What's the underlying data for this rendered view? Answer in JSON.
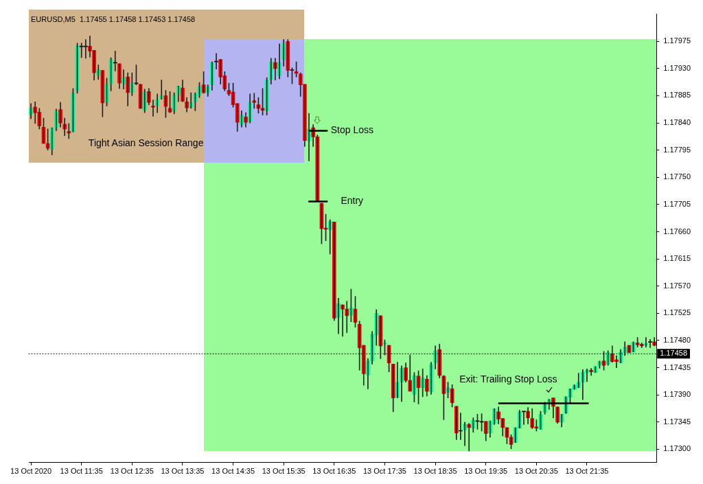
{
  "chart_data": {
    "type": "candlestick",
    "title": "EURUSD,M5  1.17455 1.17458 1.17453 1.17458",
    "categories": [
      "13 Oct 2020",
      null,
      null,
      null,
      null,
      null,
      null,
      null,
      null,
      null,
      null,
      null,
      "13 Oct 11:35",
      null,
      null,
      null,
      null,
      null,
      null,
      null,
      null,
      null,
      null,
      null,
      "13 Oct 12:35",
      null,
      null,
      null,
      null,
      null,
      null,
      null,
      null,
      null,
      null,
      null,
      "13 Oct 13:35",
      null,
      null,
      null,
      null,
      null,
      null,
      null,
      null,
      null,
      null,
      null,
      "13 Oct 14:35",
      null,
      null,
      null,
      null,
      null,
      null,
      null,
      null,
      null,
      null,
      null,
      "13 Oct 15:35",
      null,
      null,
      null,
      null,
      null,
      null,
      null,
      null,
      null,
      null,
      null,
      "13 Oct 16:35",
      null,
      null,
      null,
      null,
      null,
      null,
      null,
      null,
      null,
      null,
      null,
      "13 Oct 17:35",
      null,
      null,
      null,
      null,
      null,
      null,
      null,
      null,
      null,
      null,
      null,
      "13 Oct 18:35",
      null,
      null,
      null,
      null,
      null,
      null,
      null,
      null,
      null,
      null,
      null,
      "13 Oct 19:35",
      null,
      null,
      null,
      null,
      null,
      null,
      null,
      null,
      null,
      null,
      null,
      "13 Oct 20:35",
      null,
      null,
      null,
      null,
      null,
      null,
      null,
      null,
      null,
      null,
      null,
      "13 Oct 21:35",
      null,
      null,
      null,
      null,
      null,
      null,
      null,
      null,
      null,
      null,
      null,
      null,
      null,
      null,
      null,
      null
    ],
    "ohlc": [
      [
        1.17854,
        1.17872,
        1.17847,
        1.17865
      ],
      [
        1.17866,
        1.17875,
        1.17839,
        1.17857
      ],
      [
        1.17858,
        1.17864,
        1.1783,
        1.17835
      ],
      [
        1.17833,
        1.17848,
        1.17806,
        1.17806
      ],
      [
        1.17806,
        1.1783,
        1.17795,
        1.17798
      ],
      [
        1.17796,
        1.17832,
        1.17787,
        1.17832
      ],
      [
        1.17832,
        1.17863,
        1.17827,
        1.1786
      ],
      [
        1.17862,
        1.17874,
        1.17833,
        1.1784
      ],
      [
        1.17838,
        1.17848,
        1.17819,
        1.1783
      ],
      [
        1.17826,
        1.17839,
        1.17814,
        1.17823
      ],
      [
        1.17825,
        1.17897,
        1.17825,
        1.1789
      ],
      [
        1.17893,
        1.17972,
        1.17889,
        1.17968
      ],
      [
        1.17966,
        1.17972,
        1.17948,
        1.17966
      ],
      [
        1.17966,
        1.17978,
        1.17947,
        1.17966
      ],
      [
        1.17967,
        1.17984,
        1.17949,
        1.17959
      ],
      [
        1.1796,
        1.1796,
        1.17911,
        1.17923
      ],
      [
        1.17919,
        1.17936,
        1.17912,
        1.17928
      ],
      [
        1.17927,
        1.17927,
        1.1785,
        1.17873
      ],
      [
        1.17874,
        1.17914,
        1.17868,
        1.17904
      ],
      [
        1.17905,
        1.17948,
        1.17893,
        1.17945
      ],
      [
        1.17939,
        1.17959,
        1.17926,
        1.17939
      ],
      [
        1.17938,
        1.17938,
        1.17897,
        1.17906
      ],
      [
        1.17905,
        1.17928,
        1.17896,
        1.17915
      ],
      [
        1.17916,
        1.17923,
        1.17868,
        1.1789
      ],
      [
        1.1789,
        1.17923,
        1.17885,
        1.17906
      ],
      [
        1.17905,
        1.17936,
        1.17903,
        1.17905
      ],
      [
        1.17904,
        1.17904,
        1.17864,
        1.17864
      ],
      [
        1.17861,
        1.17896,
        1.17857,
        1.17892
      ],
      [
        1.17892,
        1.17897,
        1.1787,
        1.17874
      ],
      [
        1.17868,
        1.17878,
        1.17851,
        1.17866
      ],
      [
        1.17868,
        1.17888,
        1.17857,
        1.17879
      ],
      [
        1.1788,
        1.17911,
        1.17879,
        1.17885
      ],
      [
        1.17885,
        1.17894,
        1.17849,
        1.17867
      ],
      [
        1.17864,
        1.17892,
        1.17857,
        1.17858
      ],
      [
        1.1786,
        1.1789,
        1.17855,
        1.17886
      ],
      [
        1.17887,
        1.17901,
        1.17875,
        1.17901
      ],
      [
        1.17898,
        1.17911,
        1.17875,
        1.17876
      ],
      [
        1.17875,
        1.17882,
        1.17858,
        1.17865
      ],
      [
        1.17866,
        1.1789,
        1.17864,
        1.17874
      ],
      [
        1.17875,
        1.1789,
        1.1786,
        1.17888
      ],
      [
        1.17886,
        1.17907,
        1.17882,
        1.17901
      ],
      [
        1.17903,
        1.17925,
        1.17889,
        1.1789
      ],
      [
        1.17889,
        1.17903,
        1.17884,
        1.179
      ],
      [
        1.17903,
        1.17941,
        1.17894,
        1.1794
      ],
      [
        1.17941,
        1.17955,
        1.17929,
        1.17941
      ],
      [
        1.17945,
        1.17945,
        1.17904,
        1.17916
      ],
      [
        1.17918,
        1.17925,
        1.17893,
        1.17896
      ],
      [
        1.17894,
        1.17906,
        1.17885,
        1.17888
      ],
      [
        1.17891,
        1.17906,
        1.17866,
        1.1787
      ],
      [
        1.17872,
        1.17872,
        1.17826,
        1.17841
      ],
      [
        1.17837,
        1.1786,
        1.17833,
        1.17853
      ],
      [
        1.1785,
        1.17857,
        1.17833,
        1.17841
      ],
      [
        1.17842,
        1.17888,
        1.1784,
        1.17874
      ],
      [
        1.17877,
        1.17889,
        1.17864,
        1.17874
      ],
      [
        1.1787,
        1.17882,
        1.17856,
        1.17864
      ],
      [
        1.17864,
        1.17897,
        1.17853,
        1.17861
      ],
      [
        1.1786,
        1.17915,
        1.17853,
        1.17911
      ],
      [
        1.17912,
        1.17947,
        1.17904,
        1.17941
      ],
      [
        1.1794,
        1.17947,
        1.17911,
        1.1793
      ],
      [
        1.17918,
        1.17971,
        1.17913,
        1.1794
      ],
      [
        1.17945,
        1.17978,
        1.17934,
        1.17972
      ],
      [
        1.17975,
        1.17978,
        1.17916,
        1.17927
      ],
      [
        1.17927,
        1.17931,
        1.17905,
        1.17927
      ],
      [
        1.17925,
        1.17941,
        1.17916,
        1.17922
      ],
      [
        1.17921,
        1.17923,
        1.17884,
        1.17903
      ],
      [
        1.17904,
        1.17904,
        1.17801,
        1.17811
      ],
      [
        1.1781,
        1.17856,
        1.17777,
        1.1783
      ],
      [
        1.17832,
        1.17837,
        1.17801,
        1.17817
      ],
      [
        1.17817,
        1.1782,
        1.1771,
        1.1771
      ],
      [
        1.17707,
        1.17707,
        1.1764,
        1.17665
      ],
      [
        1.17666,
        1.17689,
        1.17645,
        1.17664
      ],
      [
        1.17663,
        1.1768,
        1.17623,
        1.17677
      ],
      [
        1.17676,
        1.17676,
        1.17513,
        1.17517
      ],
      [
        1.17518,
        1.1755,
        1.17491,
        1.17541
      ],
      [
        1.17539,
        1.17539,
        1.17487,
        1.17532
      ],
      [
        1.17532,
        1.17545,
        1.17493,
        1.17521
      ],
      [
        1.17522,
        1.17565,
        1.17511,
        1.17534
      ],
      [
        1.17532,
        1.17553,
        1.17502,
        1.1751
      ],
      [
        1.17507,
        1.17512,
        1.17431,
        1.17468
      ],
      [
        1.17472,
        1.17472,
        1.17406,
        1.17425
      ],
      [
        1.17423,
        1.1745,
        1.174,
        1.17446
      ],
      [
        1.17446,
        1.17495,
        1.17441,
        1.1749
      ],
      [
        1.17489,
        1.17531,
        1.17472,
        1.17525
      ],
      [
        1.17521,
        1.17521,
        1.1745,
        1.17471
      ],
      [
        1.17474,
        1.17481,
        1.17456,
        1.17476
      ],
      [
        1.17472,
        1.17472,
        1.17428,
        1.17443
      ],
      [
        1.17441,
        1.17441,
        1.17362,
        1.17385
      ],
      [
        1.17386,
        1.17444,
        1.17385,
        1.17411
      ],
      [
        1.17411,
        1.17438,
        1.17379,
        1.17434
      ],
      [
        1.17435,
        1.17443,
        1.17411,
        1.17414
      ],
      [
        1.17414,
        1.17456,
        1.17396,
        1.17396
      ],
      [
        1.17391,
        1.17427,
        1.17378,
        1.17422
      ],
      [
        1.17421,
        1.1743,
        1.17375,
        1.17402
      ],
      [
        1.17402,
        1.17433,
        1.17387,
        1.17418
      ],
      [
        1.17416,
        1.17422,
        1.17388,
        1.17396
      ],
      [
        1.17395,
        1.17444,
        1.17391,
        1.17441
      ],
      [
        1.17443,
        1.17471,
        1.17433,
        1.17463
      ],
      [
        1.17465,
        1.17474,
        1.17418,
        1.17422
      ],
      [
        1.17421,
        1.17422,
        1.17349,
        1.17392
      ],
      [
        1.17394,
        1.17411,
        1.17385,
        1.17402
      ],
      [
        1.174,
        1.17407,
        1.1737,
        1.17377
      ],
      [
        1.17371,
        1.17371,
        1.17316,
        1.17327
      ],
      [
        1.1733,
        1.1736,
        1.17316,
        1.1733
      ],
      [
        1.17332,
        1.17345,
        1.17306,
        1.17342
      ],
      [
        1.17341,
        1.17343,
        1.17297,
        1.17336
      ],
      [
        1.17335,
        1.17352,
        1.17328,
        1.17348
      ],
      [
        1.17346,
        1.17358,
        1.17333,
        1.17346
      ],
      [
        1.17345,
        1.17359,
        1.1733,
        1.17345
      ],
      [
        1.17346,
        1.17346,
        1.17314,
        1.17326
      ],
      [
        1.17327,
        1.17347,
        1.1732,
        1.17347
      ],
      [
        1.17343,
        1.17367,
        1.17341,
        1.17367
      ],
      [
        1.17362,
        1.1737,
        1.17342,
        1.1735
      ],
      [
        1.17351,
        1.17351,
        1.17322,
        1.17336
      ],
      [
        1.17336,
        1.17336,
        1.17309,
        1.1732
      ],
      [
        1.1732,
        1.17324,
        1.17301,
        1.17308
      ],
      [
        1.17311,
        1.17336,
        1.17311,
        1.17336
      ],
      [
        1.17335,
        1.17365,
        1.17335,
        1.17362
      ],
      [
        1.17362,
        1.17363,
        1.17341,
        1.17362
      ],
      [
        1.17363,
        1.17369,
        1.17342,
        1.17352
      ],
      [
        1.17351,
        1.17367,
        1.17334,
        1.17336
      ],
      [
        1.17337,
        1.17349,
        1.1733,
        1.17335
      ],
      [
        1.17333,
        1.17363,
        1.17333,
        1.17358
      ],
      [
        1.17361,
        1.17378,
        1.17358,
        1.17376
      ],
      [
        1.17376,
        1.17383,
        1.17366,
        1.17382
      ],
      [
        1.17385,
        1.17385,
        1.17352,
        1.17371
      ],
      [
        1.1737,
        1.1737,
        1.17343,
        1.17345
      ],
      [
        1.17345,
        1.17358,
        1.17337,
        1.17358
      ],
      [
        1.1736,
        1.17387,
        1.17359,
        1.17387
      ],
      [
        1.17386,
        1.174,
        1.17376,
        1.174
      ],
      [
        1.17399,
        1.17407,
        1.17399,
        1.17406
      ],
      [
        1.17402,
        1.17426,
        1.17402,
        1.17411
      ],
      [
        1.17411,
        1.17432,
        1.17382,
        1.17428
      ],
      [
        1.17427,
        1.17433,
        1.17412,
        1.17431
      ],
      [
        1.17431,
        1.17434,
        1.17422,
        1.17428
      ],
      [
        1.17427,
        1.17437,
        1.17427,
        1.17437
      ],
      [
        1.17439,
        1.17446,
        1.17434,
        1.17445
      ],
      [
        1.17446,
        1.17462,
        1.17431,
        1.17439
      ],
      [
        1.17441,
        1.17463,
        1.17439,
        1.1746
      ],
      [
        1.17458,
        1.17471,
        1.17444,
        1.17445
      ],
      [
        1.17448,
        1.17455,
        1.17435,
        1.17445
      ],
      [
        1.17443,
        1.17465,
        1.17443,
        1.17461
      ],
      [
        1.1746,
        1.17478,
        1.17455,
        1.17469
      ],
      [
        1.17472,
        1.17472,
        1.1746,
        1.1746
      ],
      [
        1.17461,
        1.17478,
        1.17461,
        1.17477
      ],
      [
        1.17476,
        1.17485,
        1.17469,
        1.17473
      ],
      [
        1.17474,
        1.17476,
        1.17468,
        1.17471
      ],
      [
        1.17472,
        1.17485,
        1.17469,
        1.17475
      ],
      [
        1.17477,
        1.17482,
        1.17468,
        1.17477
      ],
      [
        1.17478,
        1.17485,
        1.17471,
        1.17472
      ]
    ],
    "colors": [
      "#00fa9a",
      "#ff0000",
      "#ff0000",
      "#ff0000",
      "#ff0000",
      "#00fa9a",
      "#00fa9a",
      "#ff0000",
      "#ff0000",
      "#ff0000",
      "#00fa9a",
      "#00fa9a",
      "#000000",
      "#000000",
      "#ff0000",
      "#ff0000",
      "#00fa9a",
      "#ff0000",
      "#00fa9a",
      "#00fa9a",
      "#000000",
      "#ff0000",
      "#00fa9a",
      "#ff0000",
      "#00fa9a",
      "#000000",
      "#ff0000",
      "#00fa9a",
      "#ff0000",
      "#ff0000",
      "#00fa9a",
      "#00fa9a",
      "#ff0000",
      "#ff0000",
      "#00fa9a",
      "#00fa9a",
      "#ff0000",
      "#ff0000",
      "#00fa9a",
      "#00fa9a",
      "#00fa9a",
      "#ff0000",
      "#00fa9a",
      "#00fa9a",
      "#000000",
      "#ff0000",
      "#ff0000",
      "#ff0000",
      "#ff0000",
      "#ff0000",
      "#00fa9a",
      "#ff0000",
      "#00fa9a",
      "#ff0000",
      "#ff0000",
      "#ff0000",
      "#00fa9a",
      "#00fa9a",
      "#ff0000",
      "#00fa9a",
      "#00fa9a",
      "#ff0000",
      "#000000",
      "#ff0000",
      "#ff0000",
      "#ff0000",
      "#00fa9a",
      "#ff0000",
      "#ff0000",
      "#ff0000",
      "#ff0000",
      "#00fa9a",
      "#ff0000",
      "#00fa9a",
      "#ff0000",
      "#ff0000",
      "#00fa9a",
      "#ff0000",
      "#ff0000",
      "#ff0000",
      "#00fa9a",
      "#00fa9a",
      "#00fa9a",
      "#ff0000",
      "#00fa9a",
      "#ff0000",
      "#ff0000",
      "#00fa9a",
      "#00fa9a",
      "#ff0000",
      "#ff0000",
      "#00fa9a",
      "#ff0000",
      "#00fa9a",
      "#ff0000",
      "#00fa9a",
      "#00fa9a",
      "#ff0000",
      "#ff0000",
      "#00fa9a",
      "#ff0000",
      "#ff0000",
      "#000000",
      "#00fa9a",
      "#ff0000",
      "#00fa9a",
      "#000000",
      "#000000",
      "#ff0000",
      "#00fa9a",
      "#00fa9a",
      "#ff0000",
      "#ff0000",
      "#ff0000",
      "#ff0000",
      "#00fa9a",
      "#00fa9a",
      "#000000",
      "#ff0000",
      "#ff0000",
      "#ff0000",
      "#00fa9a",
      "#00fa9a",
      "#00fa9a",
      "#ff0000",
      "#ff0000",
      "#00fa9a",
      "#00fa9a",
      "#00fa9a",
      "#00fa9a",
      "#00fa9a",
      "#00fa9a",
      "#00fa9a",
      "#ff0000",
      "#00fa9a",
      "#00fa9a",
      "#ff0000",
      "#00fa9a",
      "#ff0000",
      "#ff0000",
      "#00fa9a",
      "#00fa9a",
      "#ff0000",
      "#00fa9a",
      "#ff0000",
      "#ff0000",
      "#00fa9a",
      "#000000",
      "#ff0000"
    ],
    "ylim": [
      1.17278,
      1.1802
    ],
    "yticks": [
      {
        "value": 1.173,
        "label": "1.17300"
      },
      1.17345,
      {
        "value": 1.1739,
        "label": "1.17390"
      },
      1.17435,
      {
        "value": 1.1748,
        "label": "1.17480"
      },
      1.17525,
      {
        "value": 1.1757,
        "label": "1.17570"
      },
      1.17615,
      {
        "value": 1.1766,
        "label": "1.17660"
      },
      1.17705,
      {
        "value": 1.1775,
        "label": "1.17750"
      },
      1.17795,
      {
        "value": 1.1784,
        "label": "1.17840"
      },
      1.17885,
      {
        "value": 1.1793,
        "label": "1.17930"
      },
      1.17975
    ],
    "ref_lines": [
      {
        "axis": "y",
        "value": 1.17458,
        "label": "1.17458",
        "line_style": "dotted"
      },
      {
        "axis": "y",
        "value": 1.17827,
        "label": "Stop Loss",
        "line_style": "solid"
      },
      {
        "axis": "y",
        "value": 1.1771,
        "label": "Entry",
        "line_style": "solid"
      },
      {
        "axis": "y",
        "value": 1.17376,
        "label": "Exit: Trailing Stop Loss",
        "line_style": "solid"
      }
    ],
    "annotations": [
      "Tight Asian Session Range"
    ]
  }
}
